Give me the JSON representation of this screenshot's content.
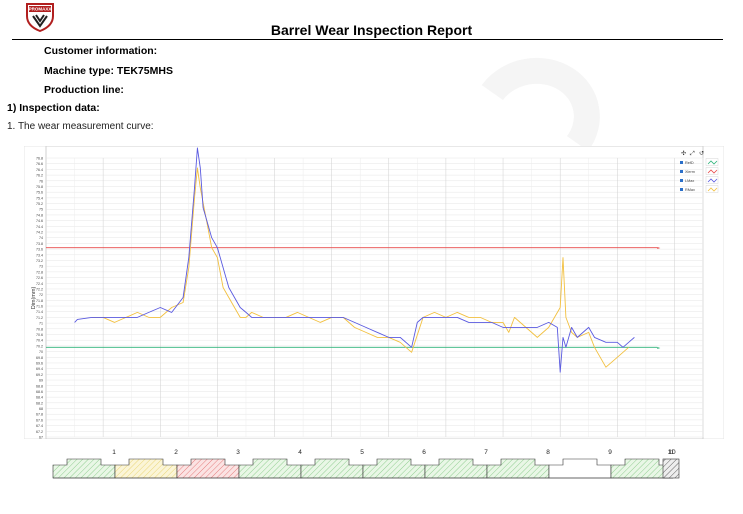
{
  "logo": {
    "text": "PROMAXX",
    "icon": "shield-emblem-icon",
    "color": "#b11f1f"
  },
  "report": {
    "title": "Barrel Wear Inspection Report"
  },
  "info": {
    "customer": "Customer information:",
    "machine": "Machine type: TEK75MHS",
    "line": "Production line:"
  },
  "section1": "1) Inspection data:",
  "subsection1": "1. The wear measurement curve:",
  "toolbar": {
    "icons": [
      "move-icon",
      "zoom-icon",
      "reset-icon"
    ]
  },
  "chart_data": {
    "type": "line",
    "ylabel": "Dim(mm)",
    "ylim": [
      74,
      76.8
    ],
    "ytick_labels": [
      "76.8",
      "76.6",
      "76.4",
      "76.2",
      "76",
      "75.8",
      "75.6",
      "75.4",
      "75.2",
      "75",
      "74.8",
      "74.6",
      "74.4",
      "74.2",
      "74",
      "73.8",
      "73.6",
      "73.4",
      "73.2",
      "73",
      "72.8",
      "72.6",
      "72.4",
      "72.2",
      "72",
      "71.8",
      "71.6",
      "71.4",
      "71.2",
      "71",
      "70.8",
      "70.6",
      "70.4",
      "70.2",
      "70",
      "69.8",
      "69.6",
      "69.4",
      "69.2",
      "69",
      "68.8",
      "68.6",
      "68.4",
      "68.2",
      "68",
      "67.8",
      "67.6",
      "67.4",
      "67.2",
      "67"
    ],
    "xlim": [
      0,
      11.5
    ],
    "grid": true,
    "legend": "top-right",
    "legend_entries": [
      "RefD",
      "Xlerm",
      "LMax",
      "RMax"
    ],
    "reference_lines": [
      {
        "name": "Xlerm",
        "y": 75.9,
        "color": "#e84a4a"
      },
      {
        "name": "RefD",
        "y": 74.9,
        "color": "#2fb37a"
      }
    ],
    "series": [
      {
        "name": "LMax",
        "color": "#5a5ae0",
        "x": [
          0.5,
          0.55,
          0.8,
          1.0,
          1.2,
          1.4,
          1.6,
          1.8,
          2.0,
          2.2,
          2.4,
          2.5,
          2.6,
          2.65,
          2.7,
          2.75,
          2.8,
          2.9,
          3.0,
          3.1,
          3.2,
          3.3,
          3.4,
          3.5,
          3.6,
          3.8,
          4.0,
          4.2,
          4.4,
          4.6,
          4.8,
          5.0,
          5.2,
          5.4,
          5.6,
          5.8,
          6.0,
          6.2,
          6.4,
          6.5,
          6.6,
          6.8,
          7.0,
          7.2,
          7.4,
          7.6,
          7.8,
          8.0,
          8.2,
          8.4,
          8.6,
          8.8,
          8.95,
          9.0,
          9.05,
          9.1,
          9.2,
          9.3,
          9.5,
          9.6,
          9.8,
          10.0,
          10.1,
          10.2,
          10.3
        ],
        "y": [
          75.15,
          75.18,
          75.2,
          75.2,
          75.2,
          75.2,
          75.2,
          75.25,
          75.3,
          75.25,
          75.4,
          75.8,
          76.5,
          76.9,
          76.7,
          76.3,
          76.2,
          76.0,
          75.9,
          75.7,
          75.5,
          75.4,
          75.3,
          75.25,
          75.2,
          75.2,
          75.2,
          75.2,
          75.2,
          75.2,
          75.2,
          75.2,
          75.2,
          75.15,
          75.1,
          75.05,
          75.0,
          75.0,
          74.9,
          75.15,
          75.2,
          75.2,
          75.2,
          75.2,
          75.15,
          75.15,
          75.15,
          75.1,
          75.1,
          75.1,
          75.1,
          75.15,
          75.1,
          74.65,
          75.0,
          74.9,
          75.1,
          75.0,
          75.1,
          75.0,
          74.95,
          74.95,
          74.9,
          74.95,
          75.0
        ]
      },
      {
        "name": "RMax",
        "color": "#f2c040",
        "x": [
          0.8,
          1.0,
          1.2,
          1.4,
          1.6,
          1.8,
          2.0,
          2.2,
          2.4,
          2.5,
          2.6,
          2.65,
          2.7,
          2.8,
          2.9,
          3.0,
          3.1,
          3.2,
          3.3,
          3.4,
          3.5,
          3.6,
          3.8,
          4.0,
          4.2,
          4.4,
          4.6,
          4.8,
          5.0,
          5.2,
          5.4,
          5.6,
          5.8,
          6.0,
          6.2,
          6.4,
          6.6,
          6.8,
          7.0,
          7.2,
          7.4,
          7.6,
          7.8,
          8.0,
          8.1,
          8.2,
          8.4,
          8.6,
          8.8,
          8.9,
          9.0,
          9.05,
          9.1,
          9.2,
          9.3,
          9.5,
          9.6,
          9.8,
          10.0,
          10.2
        ],
        "y": [
          75.2,
          75.2,
          75.15,
          75.2,
          75.25,
          75.2,
          75.2,
          75.3,
          75.35,
          75.7,
          76.4,
          76.7,
          76.5,
          76.2,
          75.9,
          75.8,
          75.5,
          75.4,
          75.3,
          75.2,
          75.2,
          75.25,
          75.2,
          75.2,
          75.2,
          75.25,
          75.2,
          75.15,
          75.2,
          75.2,
          75.1,
          75.05,
          75.0,
          75.0,
          74.95,
          74.85,
          75.2,
          75.25,
          75.2,
          75.25,
          75.2,
          75.2,
          75.15,
          75.15,
          75.05,
          75.2,
          75.1,
          75.0,
          75.1,
          75.2,
          75.3,
          75.8,
          75.2,
          75.05,
          75.0,
          75.05,
          74.9,
          74.7,
          74.8,
          74.9
        ]
      }
    ]
  },
  "zones": {
    "labels": [
      "1",
      "2",
      "3",
      "4",
      "5",
      "6",
      "7",
      "8",
      "9",
      "10",
      "11"
    ],
    "fills": [
      "green",
      "yellow",
      "red",
      "green",
      "green",
      "green",
      "green",
      "green",
      "white",
      "green",
      "gray"
    ]
  }
}
